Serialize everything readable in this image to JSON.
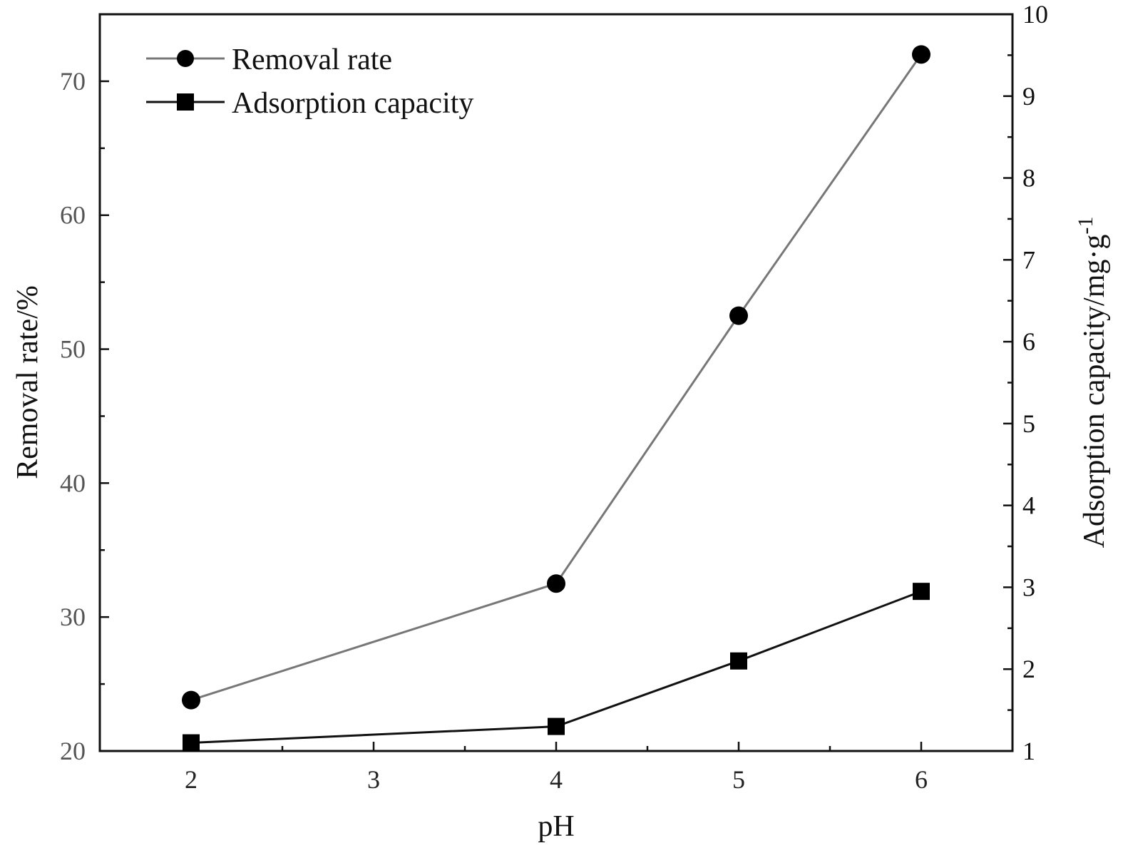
{
  "chart_data": {
    "type": "line",
    "title": "",
    "xlabel": "pH",
    "ylabel_left": "Removal rate/%",
    "ylabel_right_main": "Adsorption capacity/mg·g",
    "ylabel_right_sup": "-1",
    "xlim": [
      1.5,
      6.5
    ],
    "ylim_left": [
      20,
      75
    ],
    "ylim_right": [
      1,
      10
    ],
    "x_ticks": [
      2,
      3,
      4,
      5,
      6
    ],
    "x_tick_labels": [
      "2",
      "3",
      "4",
      "5",
      "6"
    ],
    "y_left_ticks": [
      20,
      30,
      40,
      50,
      60,
      70
    ],
    "y_left_tick_labels": [
      "20",
      "30",
      "40",
      "50",
      "60",
      "70"
    ],
    "y_right_ticks": [
      1,
      2,
      3,
      4,
      5,
      6,
      7,
      8,
      9,
      10
    ],
    "y_right_tick_labels": [
      "1",
      "2",
      "3",
      "4",
      "5",
      "6",
      "7",
      "8",
      "9",
      "10"
    ],
    "grid": false,
    "legend_position": "top-left",
    "series": [
      {
        "name": "Removal rate",
        "axis": "left",
        "marker": "circle",
        "line_color": "#777777",
        "x": [
          2,
          4,
          5,
          6
        ],
        "values": [
          23.8,
          32.5,
          52.5,
          72.0
        ]
      },
      {
        "name": "Adsorption capacity",
        "axis": "right",
        "marker": "square",
        "line_color": "#111111",
        "x": [
          2,
          4,
          5,
          6
        ],
        "values": [
          1.1,
          1.3,
          2.1,
          2.95
        ]
      }
    ]
  }
}
